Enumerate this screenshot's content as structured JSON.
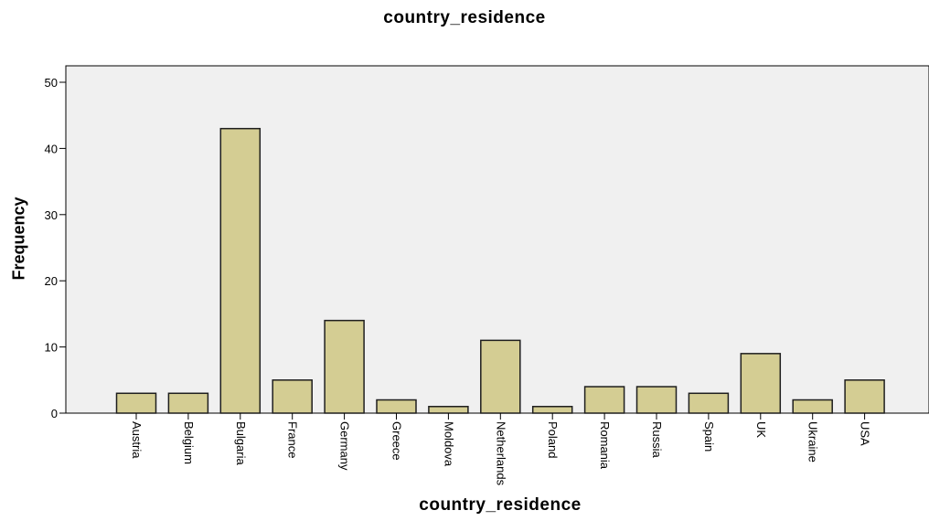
{
  "chart_data": {
    "type": "bar",
    "title": "country_residence",
    "xlabel": "country_residence",
    "ylabel": "Frequency",
    "categories": [
      "Austria",
      "Belgium",
      "Bulgaria",
      "France",
      "Germany",
      "Greece",
      "Moldova",
      "Netherlands",
      "Poland",
      "Romania",
      "Russia",
      "Spain",
      "UK",
      "Ukraine",
      "USA"
    ],
    "values": [
      3,
      3,
      43,
      5,
      14,
      2,
      1,
      11,
      1,
      4,
      4,
      3,
      9,
      2,
      5
    ],
    "ylim": [
      0,
      50
    ],
    "yticks": [
      0,
      10,
      20,
      30,
      40,
      50
    ],
    "grid": false,
    "colors": {
      "bar_fill": "#d4cd93",
      "bar_stroke": "#1e1e1e",
      "plot_background": "#f0f0f0"
    }
  }
}
